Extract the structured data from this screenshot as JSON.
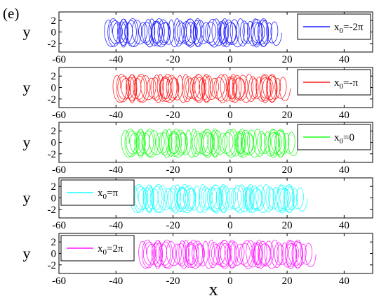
{
  "panel_label": "(e)",
  "colors": {
    "series_1": "#1a1aff",
    "series_2": "#ff1a1a",
    "series_3": "#1aff1a",
    "series_4": "#1affff",
    "series_5": "#ff1aff"
  },
  "chart_data": {
    "type": "line",
    "xlabel": "x",
    "xlim": [
      -60,
      50
    ],
    "xticks": [
      -60,
      -40,
      -20,
      0,
      20,
      40
    ],
    "subplots": [
      {
        "ylabel": "y",
        "ylim": [
          -3.5,
          3.5
        ],
        "yticks": [
          -2,
          0,
          2
        ],
        "legend": "top-right",
        "series": [
          {
            "name_base": "x",
            "name_sub": "0",
            "name_rest": "=-2π",
            "color": "#1a1aff",
            "x_range": [
              -45,
              18
            ],
            "y_amplitude": 2.5,
            "loops": 60
          }
        ]
      },
      {
        "ylabel": "y",
        "ylim": [
          -3.5,
          3.5
        ],
        "yticks": [
          -2,
          0,
          2
        ],
        "legend": "top-right",
        "series": [
          {
            "name_base": "x",
            "name_sub": "0",
            "name_rest": "=-π",
            "color": "#ff1a1a",
            "x_range": [
              -42,
              21
            ],
            "y_amplitude": 2.5,
            "loops": 60
          }
        ]
      },
      {
        "ylabel": "y",
        "ylim": [
          -3.5,
          3.5
        ],
        "yticks": [
          -2,
          0,
          2
        ],
        "legend": "top-right",
        "series": [
          {
            "name_base": "x",
            "name_sub": "0",
            "name_rest": "=0",
            "color": "#1aff1a",
            "x_range": [
              -39,
              24
            ],
            "y_amplitude": 2.5,
            "loops": 60
          }
        ]
      },
      {
        "ylabel": "y",
        "ylim": [
          -3.5,
          3.5
        ],
        "yticks": [
          -2,
          0,
          2
        ],
        "legend": "top-left",
        "series": [
          {
            "name_base": "x",
            "name_sub": "0",
            "name_rest": "=π",
            "color": "#1affff",
            "x_range": [
              -36,
              27
            ],
            "y_amplitude": 2.5,
            "loops": 60
          }
        ]
      },
      {
        "ylabel": "y",
        "ylim": [
          -3.5,
          3.5
        ],
        "yticks": [
          -2,
          0,
          2
        ],
        "legend": "top-left",
        "series": [
          {
            "name_base": "x",
            "name_sub": "0",
            "name_rest": "=2π",
            "color": "#ff1aff",
            "x_range": [
              -33,
              30
            ],
            "y_amplitude": 2.5,
            "loops": 60
          }
        ]
      }
    ]
  }
}
